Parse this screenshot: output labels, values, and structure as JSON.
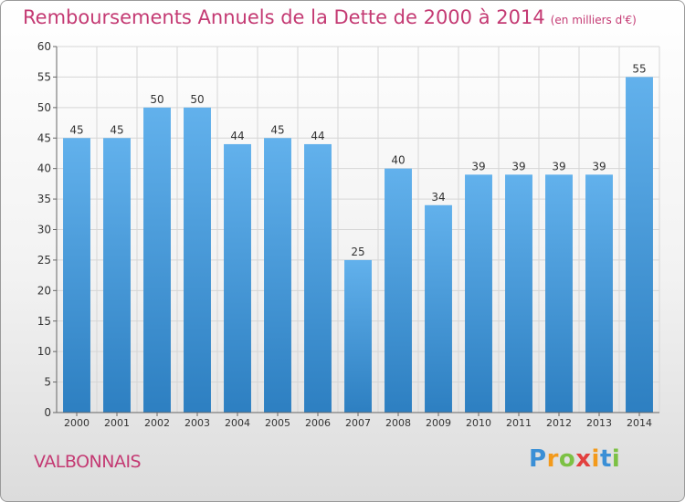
{
  "title": "Remboursements Annuels de la Dette de 2000 à 2014",
  "unit_note": "(en milliers d'€)",
  "commune": "VALBONNAIS",
  "logo": {
    "text": "Proxiti",
    "letters": [
      {
        "ch": "P",
        "color": "#3a8fd6"
      },
      {
        "ch": "r",
        "color": "#f39a1b"
      },
      {
        "ch": "o",
        "color": "#7cc144"
      },
      {
        "ch": "x",
        "color": "#e2403f"
      },
      {
        "ch": "i",
        "color": "#f39a1b"
      },
      {
        "ch": "t",
        "color": "#3a8fd6"
      },
      {
        "ch": "i",
        "color": "#7cc144"
      }
    ]
  },
  "colors": {
    "title": "#c43a73",
    "bar_top": "#62b1ec",
    "bar_bottom": "#2d7fc1",
    "grid": "#d6d6d6",
    "axis": "#666666",
    "text": "#333333"
  },
  "chart_data": {
    "type": "bar",
    "title": "Remboursements Annuels de la Dette de 2000 à 2014",
    "xlabel": "",
    "ylabel": "",
    "categories": [
      "2000",
      "2001",
      "2002",
      "2003",
      "2004",
      "2005",
      "2006",
      "2007",
      "2008",
      "2009",
      "2010",
      "2011",
      "2012",
      "2013",
      "2014"
    ],
    "values": [
      45,
      45,
      50,
      50,
      44,
      45,
      44,
      25,
      40,
      34,
      39,
      39,
      39,
      39,
      55
    ],
    "ylim": [
      0,
      60
    ],
    "yticks": [
      0,
      5,
      10,
      15,
      20,
      25,
      30,
      35,
      40,
      45,
      50,
      55,
      60
    ],
    "grid": true,
    "data_labels": true
  }
}
